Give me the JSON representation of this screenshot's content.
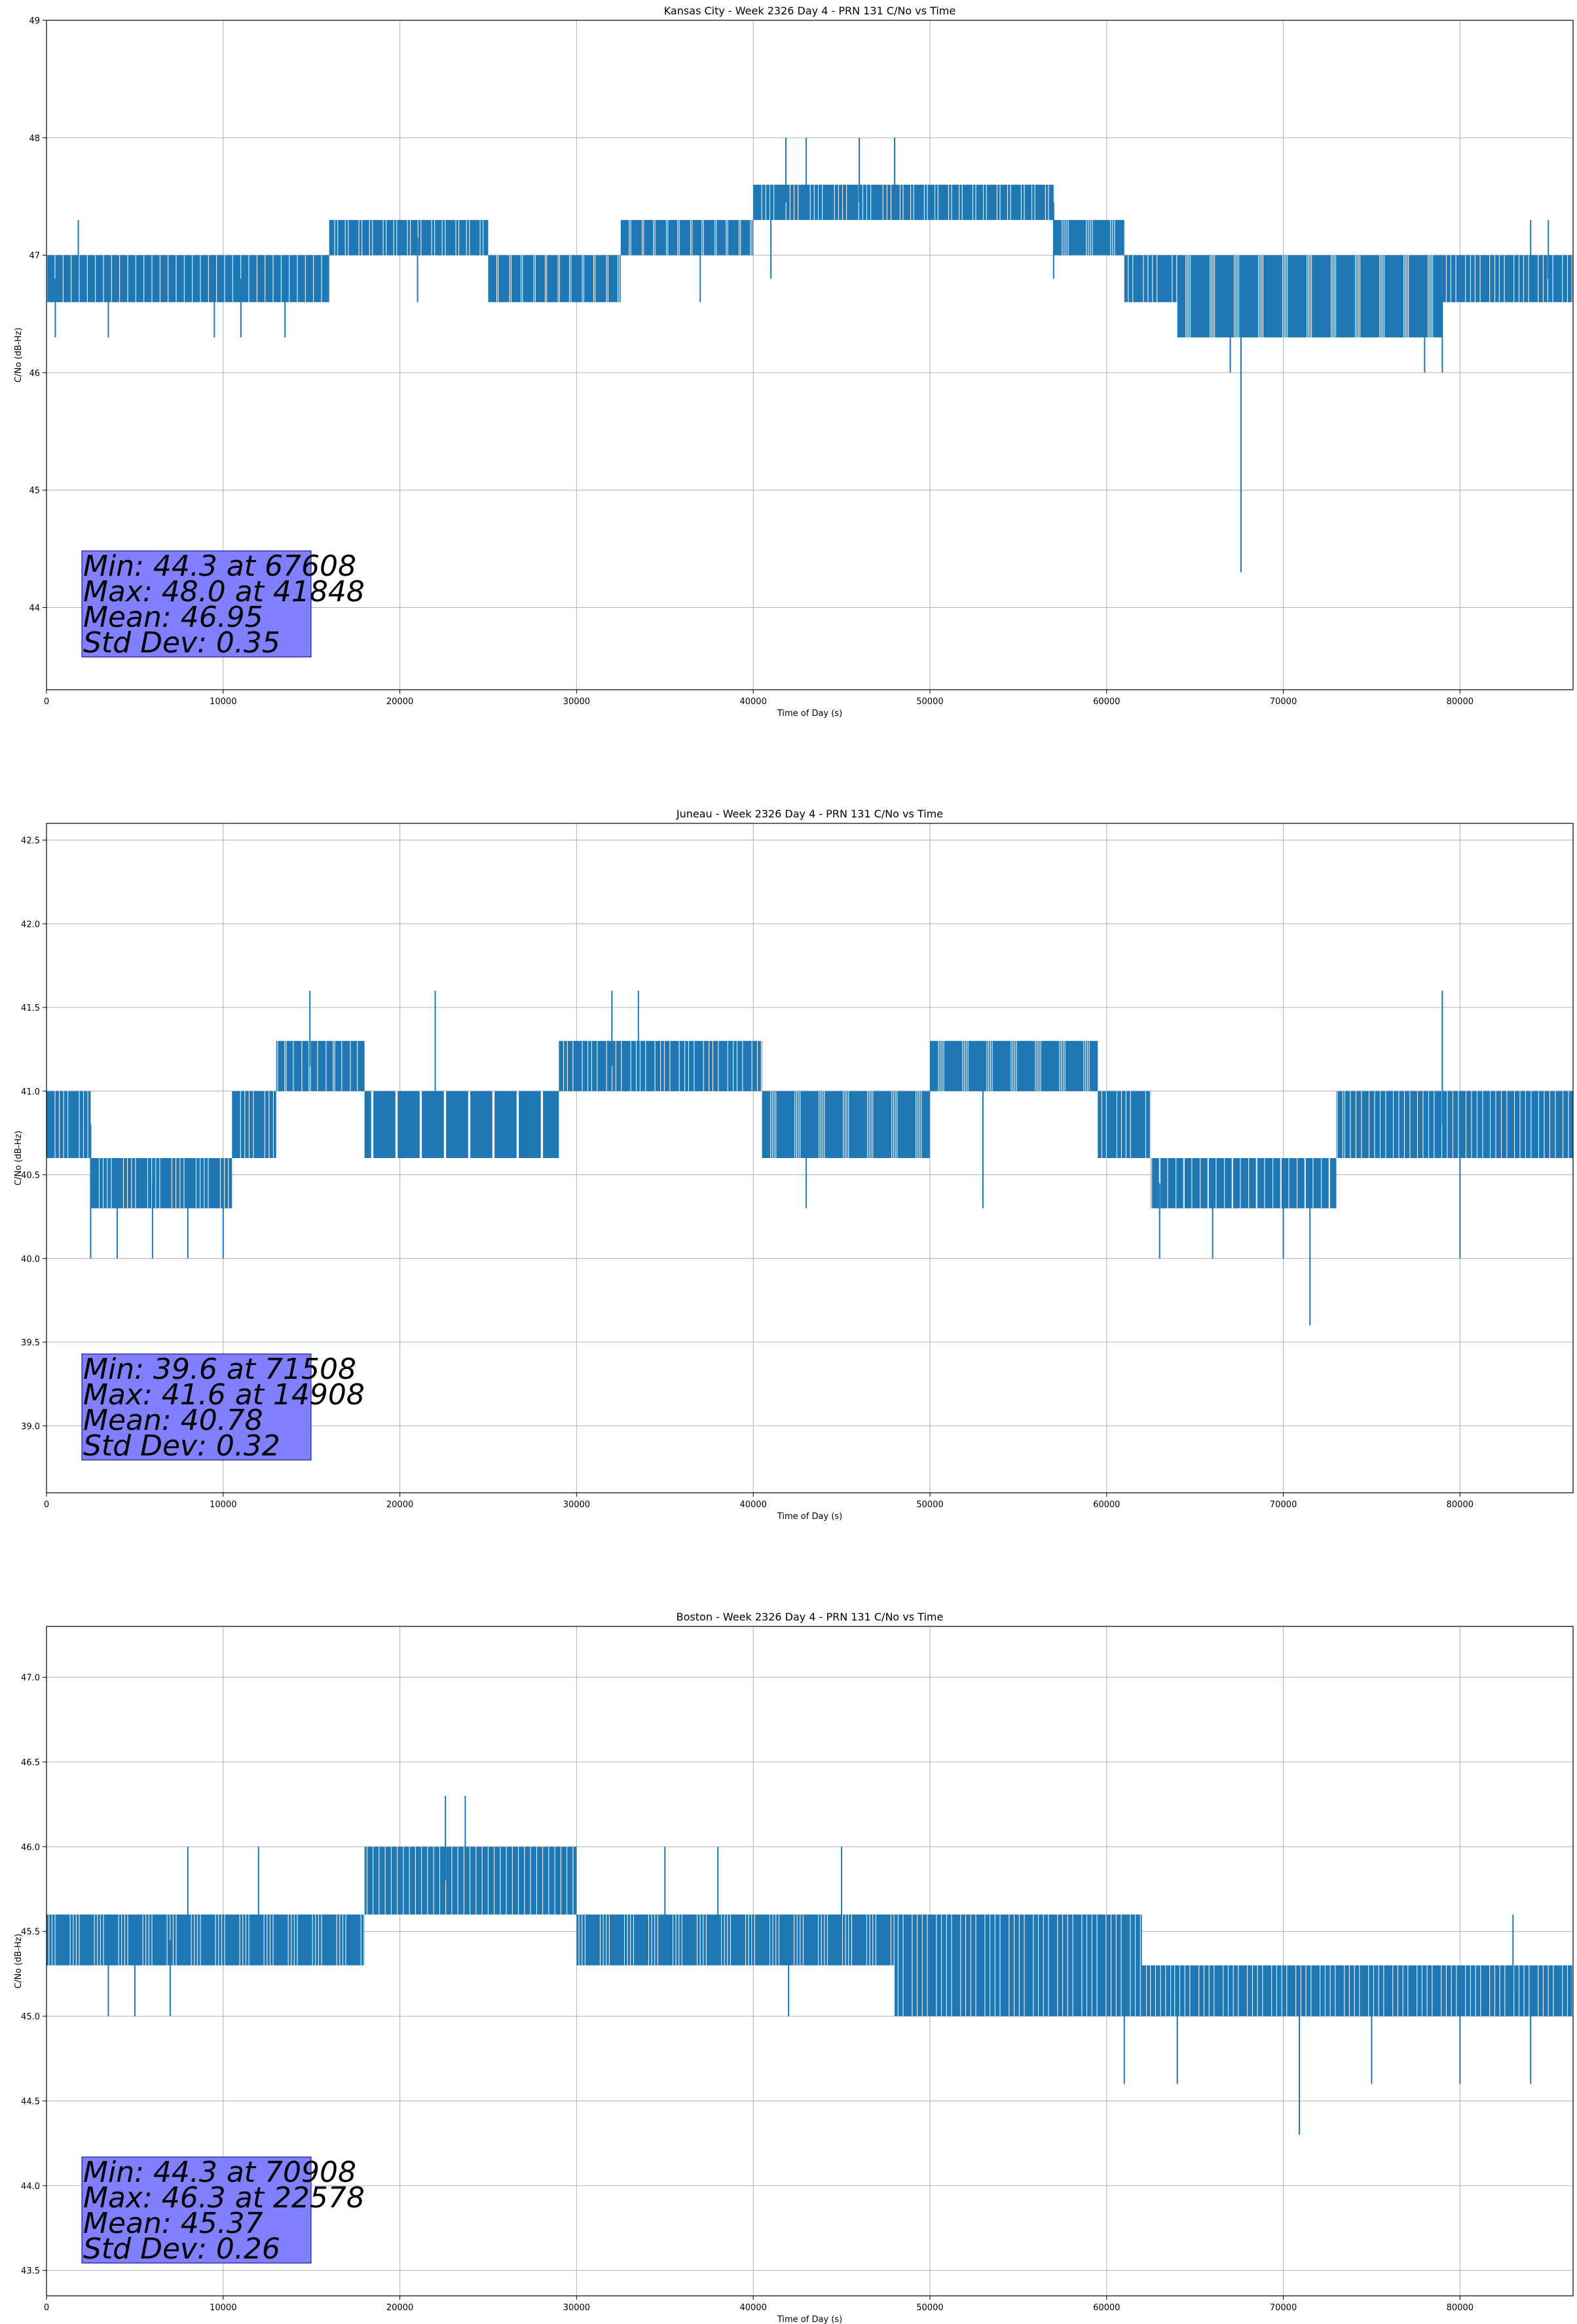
{
  "chart_data": [
    {
      "type": "line",
      "title": "Kansas City - Week 2326 Day 4 - PRN 131 C/No vs Time",
      "xlabel": "Time of Day (s)",
      "ylabel": "C/No (dB-Hz)",
      "xlim": [
        0,
        86400
      ],
      "ylim": [
        43.3,
        49.0
      ],
      "xticks": [
        0,
        10000,
        20000,
        30000,
        40000,
        50000,
        60000,
        70000,
        80000
      ],
      "yticks": [
        44,
        45,
        46,
        47,
        48,
        49
      ],
      "ytick_labels": [
        "44",
        "45",
        "46",
        "47",
        "48",
        "49"
      ],
      "grid": true,
      "color": "#1f77b4",
      "series": [
        {
          "name": "C/No",
          "segments": [
            {
              "x": [
                0,
                16000
              ],
              "low": 46.6,
              "high": 47.0
            },
            {
              "x": [
                16000,
                25000
              ],
              "low": 47.0,
              "high": 47.3
            },
            {
              "x": [
                25000,
                32500
              ],
              "low": 46.6,
              "high": 47.0
            },
            {
              "x": [
                32500,
                40000
              ],
              "low": 47.0,
              "high": 47.3
            },
            {
              "x": [
                40000,
                48000
              ],
              "low": 47.3,
              "high": 47.6
            },
            {
              "x": [
                48000,
                57000
              ],
              "low": 47.3,
              "high": 47.6
            },
            {
              "x": [
                57000,
                61000
              ],
              "low": 47.0,
              "high": 47.3
            },
            {
              "x": [
                61000,
                64000
              ],
              "low": 46.6,
              "high": 47.0
            },
            {
              "x": [
                64000,
                79000
              ],
              "low": 46.3,
              "high": 47.0
            },
            {
              "x": [
                79000,
                86400
              ],
              "low": 46.6,
              "high": 47.0
            }
          ],
          "spikes": [
            {
              "x": 1800,
              "y": 47.3
            },
            {
              "x": 500,
              "y": 46.3
            },
            {
              "x": 3500,
              "y": 46.3
            },
            {
              "x": 9500,
              "y": 46.3
            },
            {
              "x": 11000,
              "y": 46.3
            },
            {
              "x": 13500,
              "y": 46.3
            },
            {
              "x": 21000,
              "y": 46.6
            },
            {
              "x": 37000,
              "y": 46.6
            },
            {
              "x": 41000,
              "y": 46.8
            },
            {
              "x": 41848,
              "y": 48.0
            },
            {
              "x": 43000,
              "y": 48.0
            },
            {
              "x": 46000,
              "y": 48.0
            },
            {
              "x": 48000,
              "y": 48.0
            },
            {
              "x": 57000,
              "y": 46.8
            },
            {
              "x": 67000,
              "y": 46.0
            },
            {
              "x": 67608,
              "y": 44.3
            },
            {
              "x": 78000,
              "y": 46.0
            },
            {
              "x": 79000,
              "y": 46.0
            },
            {
              "x": 84000,
              "y": 47.3
            },
            {
              "x": 85000,
              "y": 47.3
            }
          ]
        }
      ],
      "stats": {
        "min": "Min: 44.3 at 67608",
        "max": "Max: 48.0 at 41848",
        "mean": "Mean: 46.95",
        "std": "Std Dev: 0.35"
      },
      "stats_box_color": "#8080ff"
    },
    {
      "type": "line",
      "title": "Juneau - Week 2326 Day 4 - PRN 131 C/No vs Time",
      "xlabel": "Time of Day (s)",
      "ylabel": "C/No (dB-Hz)",
      "xlim": [
        0,
        86400
      ],
      "ylim": [
        38.6,
        42.6
      ],
      "xticks": [
        0,
        10000,
        20000,
        30000,
        40000,
        50000,
        60000,
        70000,
        80000
      ],
      "yticks": [
        39.0,
        39.5,
        40.0,
        40.5,
        41.0,
        41.5,
        42.0,
        42.5
      ],
      "ytick_labels": [
        "39.0",
        "39.5",
        "40.0",
        "40.5",
        "41.0",
        "41.5",
        "42.0",
        "42.5"
      ],
      "grid": true,
      "color": "#1f77b4",
      "series": [
        {
          "name": "C/No",
          "segments": [
            {
              "x": [
                0,
                2500
              ],
              "low": 40.6,
              "high": 41.0
            },
            {
              "x": [
                2500,
                10500
              ],
              "low": 40.3,
              "high": 40.6
            },
            {
              "x": [
                10500,
                13000
              ],
              "low": 40.6,
              "high": 41.0
            },
            {
              "x": [
                13000,
                18000
              ],
              "low": 41.0,
              "high": 41.3
            },
            {
              "x": [
                18000,
                29000
              ],
              "low": 40.6,
              "high": 41.0
            },
            {
              "x": [
                29000,
                40500
              ],
              "low": 41.0,
              "high": 41.3
            },
            {
              "x": [
                40500,
                50000
              ],
              "low": 40.6,
              "high": 41.0
            },
            {
              "x": [
                50000,
                59500
              ],
              "low": 41.0,
              "high": 41.3
            },
            {
              "x": [
                59500,
                62500
              ],
              "low": 40.6,
              "high": 41.0
            },
            {
              "x": [
                62500,
                73000
              ],
              "low": 40.3,
              "high": 40.6
            },
            {
              "x": [
                73000,
                86400
              ],
              "low": 40.6,
              "high": 41.0
            }
          ],
          "spikes": [
            {
              "x": 2500,
              "y": 40.0
            },
            {
              "x": 4000,
              "y": 40.0
            },
            {
              "x": 6000,
              "y": 40.0
            },
            {
              "x": 8000,
              "y": 40.0
            },
            {
              "x": 10000,
              "y": 40.0
            },
            {
              "x": 14908,
              "y": 41.6
            },
            {
              "x": 22000,
              "y": 41.6
            },
            {
              "x": 32000,
              "y": 41.6
            },
            {
              "x": 33500,
              "y": 41.6
            },
            {
              "x": 43000,
              "y": 40.3
            },
            {
              "x": 53000,
              "y": 40.3
            },
            {
              "x": 63000,
              "y": 40.0
            },
            {
              "x": 66000,
              "y": 40.0
            },
            {
              "x": 70000,
              "y": 40.0
            },
            {
              "x": 71508,
              "y": 39.6
            },
            {
              "x": 79000,
              "y": 41.6
            },
            {
              "x": 80000,
              "y": 40.0
            }
          ]
        }
      ],
      "stats": {
        "min": "Min: 39.6 at 71508",
        "max": "Max: 41.6 at 14908",
        "mean": "Mean: 40.78",
        "std": "Std Dev: 0.32"
      },
      "stats_box_color": "#8080ff"
    },
    {
      "type": "line",
      "title": "Boston - Week 2326 Day 4 - PRN 131 C/No vs Time",
      "xlabel": "Time of Day (s)",
      "ylabel": "C/No (dB-Hz)",
      "xlim": [
        0,
        86400
      ],
      "ylim": [
        43.35,
        47.3
      ],
      "xticks": [
        0,
        10000,
        20000,
        30000,
        40000,
        50000,
        60000,
        70000,
        80000
      ],
      "yticks": [
        43.5,
        44.0,
        44.5,
        45.0,
        45.5,
        46.0,
        46.5,
        47.0
      ],
      "ytick_labels": [
        "43.5",
        "44.0",
        "44.5",
        "45.0",
        "45.5",
        "46.0",
        "46.5",
        "47.0"
      ],
      "grid": true,
      "color": "#1f77b4",
      "series": [
        {
          "name": "C/No",
          "segments": [
            {
              "x": [
                0,
                18000
              ],
              "low": 45.3,
              "high": 45.6
            },
            {
              "x": [
                18000,
                30000
              ],
              "low": 45.6,
              "high": 46.0
            },
            {
              "x": [
                30000,
                48000
              ],
              "low": 45.3,
              "high": 45.6
            },
            {
              "x": [
                48000,
                62000
              ],
              "low": 45.0,
              "high": 45.6
            },
            {
              "x": [
                62000,
                86400
              ],
              "low": 45.0,
              "high": 45.3
            }
          ],
          "spikes": [
            {
              "x": 3500,
              "y": 45.0
            },
            {
              "x": 5000,
              "y": 45.0
            },
            {
              "x": 7000,
              "y": 45.0
            },
            {
              "x": 8000,
              "y": 46.0
            },
            {
              "x": 12000,
              "y": 46.0
            },
            {
              "x": 22578,
              "y": 46.3
            },
            {
              "x": 23700,
              "y": 46.3
            },
            {
              "x": 35000,
              "y": 46.0
            },
            {
              "x": 38000,
              "y": 46.0
            },
            {
              "x": 42000,
              "y": 45.0
            },
            {
              "x": 45000,
              "y": 46.0
            },
            {
              "x": 61000,
              "y": 44.6
            },
            {
              "x": 64000,
              "y": 44.6
            },
            {
              "x": 70908,
              "y": 44.3
            },
            {
              "x": 75000,
              "y": 44.6
            },
            {
              "x": 80000,
              "y": 44.6
            },
            {
              "x": 84000,
              "y": 44.6
            },
            {
              "x": 83000,
              "y": 45.6
            }
          ]
        }
      ],
      "stats": {
        "min": "Min: 44.3 at 70908",
        "max": "Max: 46.3 at 22578",
        "mean": "Mean: 45.37",
        "std": "Std Dev: 0.26"
      },
      "stats_box_color": "#8080ff"
    }
  ]
}
